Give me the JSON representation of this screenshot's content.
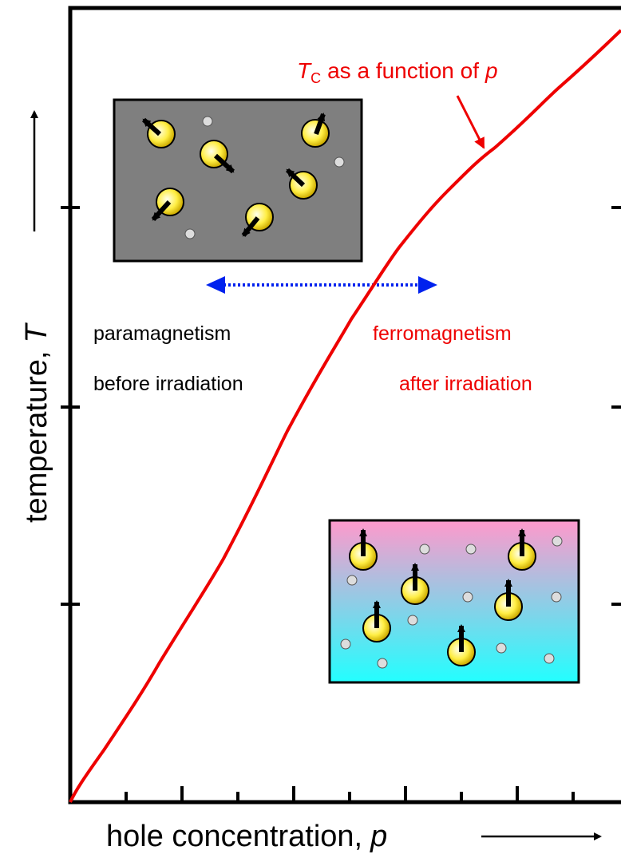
{
  "annotation": {
    "symbol": "T",
    "subscript": "C",
    "text": "as a function of",
    "variable": "p"
  },
  "left_label": {
    "line1": "paramagnetism",
    "line2": "before irradiation"
  },
  "right_label": {
    "line1": "ferromagnetism",
    "line2": "after irradiation"
  },
  "y_axis": {
    "text": "temperature,",
    "variable": "T"
  },
  "x_axis": {
    "text": "hole concentration,",
    "variable": "p"
  }
}
